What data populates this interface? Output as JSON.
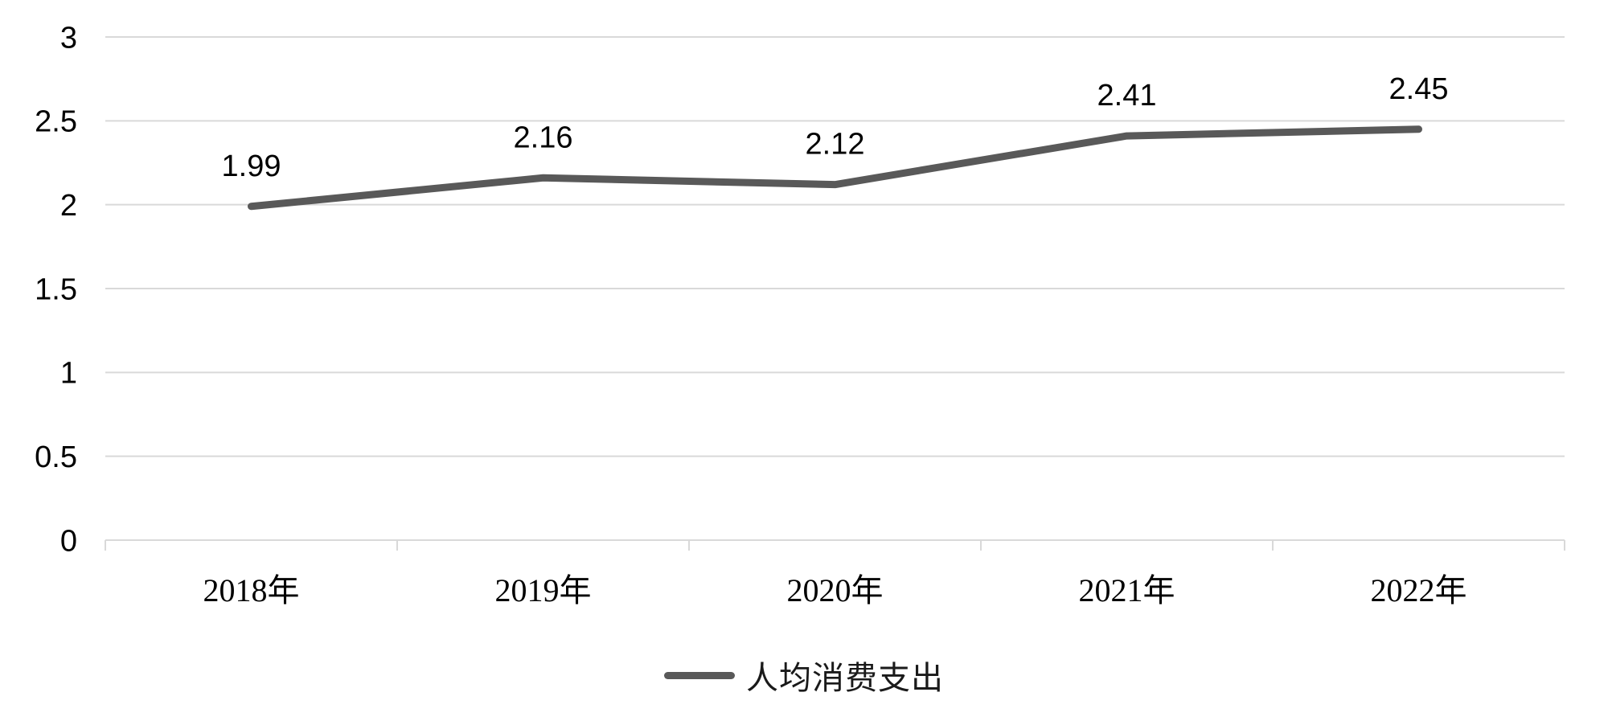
{
  "chart_data": {
    "type": "line",
    "title": "",
    "xlabel": "",
    "ylabel": "",
    "categories": [
      "2018年",
      "2019年",
      "2020年",
      "2021年",
      "2022年"
    ],
    "series": [
      {
        "name": "人均消费支出",
        "values": [
          1.99,
          2.16,
          2.12,
          2.41,
          2.45
        ],
        "color": "#595959",
        "line_width": 9
      }
    ],
    "data_labels": [
      "1.99",
      "2.16",
      "2.12",
      "2.41",
      "2.45"
    ],
    "ylim": [
      0,
      3
    ],
    "y_ticks": [
      0,
      0.5,
      1,
      1.5,
      2,
      2.5,
      3
    ],
    "y_tick_labels": [
      "0",
      "0.5",
      "1",
      "1.5",
      "2",
      "2.5",
      "3"
    ],
    "grid": true,
    "legend_position": "bottom",
    "colors": {
      "gridline": "#d9d9d9",
      "axis": "#d9d9d9",
      "tick_text": "#000000",
      "data_label_text": "#000000",
      "legend_text": "#1a1a1a",
      "background": "#ffffff"
    }
  },
  "legend": {
    "series_label": "人均消费支出"
  }
}
